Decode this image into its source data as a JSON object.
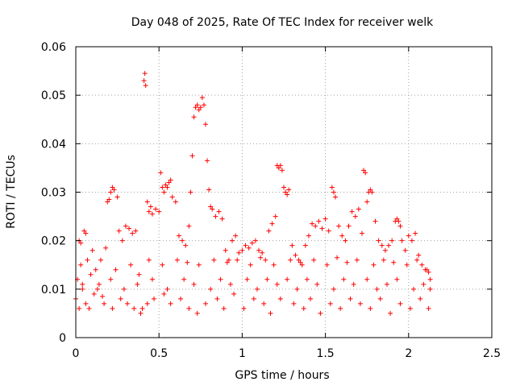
{
  "chart_data": {
    "type": "scatter",
    "title": "Day 048 of 2025, Rate Of TEC Index for receiver welk",
    "xlabel": "GPS time / hours",
    "ylabel": "ROTI / TECUs",
    "xlim": [
      0,
      2.5
    ],
    "ylim": [
      0,
      0.06
    ],
    "xticks": [
      0,
      0.5,
      1,
      1.5,
      2,
      2.5
    ],
    "xtick_labels": [
      "0",
      "0.5",
      "1",
      "1.5",
      "2",
      "2.5"
    ],
    "yticks": [
      0,
      0.01,
      0.02,
      0.03,
      0.04,
      0.05,
      0.06
    ],
    "ytick_labels": [
      "0",
      "0.01",
      "0.02",
      "0.03",
      "0.04",
      "0.05",
      "0.06"
    ],
    "grid": true,
    "marker": "plus",
    "color": "#ff0000",
    "series": [
      {
        "name": "",
        "points": [
          [
            0.0,
            0.008
          ],
          [
            0.01,
            0.012
          ],
          [
            0.02,
            0.02
          ],
          [
            0.03,
            0.0195
          ],
          [
            0.04,
            0.01
          ],
          [
            0.05,
            0.022
          ],
          [
            0.06,
            0.0215
          ],
          [
            0.07,
            0.016
          ],
          [
            0.08,
            0.006
          ],
          [
            0.1,
            0.018
          ],
          [
            0.12,
            0.014
          ],
          [
            0.14,
            0.011
          ],
          [
            0.16,
            0.0085
          ],
          [
            0.18,
            0.0185
          ],
          [
            0.19,
            0.028
          ],
          [
            0.2,
            0.0285
          ],
          [
            0.21,
            0.03
          ],
          [
            0.22,
            0.031
          ],
          [
            0.23,
            0.0305
          ],
          [
            0.25,
            0.029
          ],
          [
            0.26,
            0.022
          ],
          [
            0.28,
            0.02
          ],
          [
            0.3,
            0.023
          ],
          [
            0.32,
            0.0225
          ],
          [
            0.34,
            0.0215
          ],
          [
            0.36,
            0.022
          ],
          [
            0.38,
            0.013
          ],
          [
            0.4,
            0.006
          ],
          [
            0.41,
            0.053
          ],
          [
            0.415,
            0.0545
          ],
          [
            0.42,
            0.052
          ],
          [
            0.43,
            0.028
          ],
          [
            0.44,
            0.026
          ],
          [
            0.45,
            0.027
          ],
          [
            0.46,
            0.0255
          ],
          [
            0.48,
            0.0265
          ],
          [
            0.5,
            0.026
          ],
          [
            0.51,
            0.034
          ],
          [
            0.52,
            0.031
          ],
          [
            0.53,
            0.03
          ],
          [
            0.54,
            0.0315
          ],
          [
            0.55,
            0.031
          ],
          [
            0.56,
            0.032
          ],
          [
            0.57,
            0.0325
          ],
          [
            0.58,
            0.029
          ],
          [
            0.6,
            0.028
          ],
          [
            0.62,
            0.021
          ],
          [
            0.64,
            0.02
          ],
          [
            0.66,
            0.019
          ],
          [
            0.68,
            0.023
          ],
          [
            0.69,
            0.03
          ],
          [
            0.7,
            0.0375
          ],
          [
            0.71,
            0.0455
          ],
          [
            0.72,
            0.0475
          ],
          [
            0.73,
            0.048
          ],
          [
            0.74,
            0.047
          ],
          [
            0.75,
            0.0475
          ],
          [
            0.76,
            0.0495
          ],
          [
            0.77,
            0.048
          ],
          [
            0.78,
            0.044
          ],
          [
            0.79,
            0.0365
          ],
          [
            0.8,
            0.0305
          ],
          [
            0.81,
            0.027
          ],
          [
            0.82,
            0.0265
          ],
          [
            0.84,
            0.025
          ],
          [
            0.86,
            0.026
          ],
          [
            0.88,
            0.0245
          ],
          [
            0.9,
            0.018
          ],
          [
            0.92,
            0.016
          ],
          [
            0.94,
            0.02
          ],
          [
            0.96,
            0.021
          ],
          [
            0.98,
            0.0175
          ],
          [
            1.0,
            0.018
          ],
          [
            1.02,
            0.019
          ],
          [
            1.04,
            0.0185
          ],
          [
            1.06,
            0.0195
          ],
          [
            1.08,
            0.02
          ],
          [
            1.1,
            0.018
          ],
          [
            1.12,
            0.0175
          ],
          [
            1.14,
            0.016
          ],
          [
            1.16,
            0.022
          ],
          [
            1.18,
            0.0235
          ],
          [
            1.2,
            0.025
          ],
          [
            1.21,
            0.0355
          ],
          [
            1.22,
            0.035
          ],
          [
            1.23,
            0.0355
          ],
          [
            1.24,
            0.0345
          ],
          [
            1.25,
            0.031
          ],
          [
            1.26,
            0.03
          ],
          [
            1.27,
            0.0295
          ],
          [
            1.28,
            0.0305
          ],
          [
            1.3,
            0.019
          ],
          [
            1.32,
            0.017
          ],
          [
            1.34,
            0.016
          ],
          [
            1.36,
            0.015
          ],
          [
            1.38,
            0.019
          ],
          [
            1.4,
            0.021
          ],
          [
            1.42,
            0.0235
          ],
          [
            1.44,
            0.023
          ],
          [
            1.46,
            0.024
          ],
          [
            1.48,
            0.0225
          ],
          [
            1.5,
            0.0245
          ],
          [
            1.52,
            0.022
          ],
          [
            1.54,
            0.031
          ],
          [
            1.55,
            0.03
          ],
          [
            1.56,
            0.029
          ],
          [
            1.58,
            0.023
          ],
          [
            1.6,
            0.021
          ],
          [
            1.62,
            0.02
          ],
          [
            1.64,
            0.023
          ],
          [
            1.66,
            0.026
          ],
          [
            1.68,
            0.025
          ],
          [
            1.7,
            0.0265
          ],
          [
            1.72,
            0.0215
          ],
          [
            1.73,
            0.0345
          ],
          [
            1.74,
            0.034
          ],
          [
            1.75,
            0.028
          ],
          [
            1.76,
            0.03
          ],
          [
            1.77,
            0.0305
          ],
          [
            1.78,
            0.03
          ],
          [
            1.8,
            0.024
          ],
          [
            1.82,
            0.02
          ],
          [
            1.84,
            0.019
          ],
          [
            1.86,
            0.018
          ],
          [
            1.88,
            0.019
          ],
          [
            1.9,
            0.02
          ],
          [
            1.92,
            0.024
          ],
          [
            1.93,
            0.0245
          ],
          [
            1.94,
            0.024
          ],
          [
            1.95,
            0.023
          ],
          [
            1.96,
            0.02
          ],
          [
            1.98,
            0.018
          ],
          [
            2.0,
            0.021
          ],
          [
            2.02,
            0.02
          ],
          [
            2.04,
            0.0215
          ],
          [
            2.06,
            0.017
          ],
          [
            2.08,
            0.015
          ],
          [
            2.1,
            0.014
          ],
          [
            2.12,
            0.0135
          ],
          [
            2.13,
            0.01
          ],
          [
            0.03,
            0.015
          ],
          [
            0.09,
            0.013
          ],
          [
            0.15,
            0.016
          ],
          [
            0.24,
            0.014
          ],
          [
            0.33,
            0.015
          ],
          [
            0.44,
            0.016
          ],
          [
            0.52,
            0.015
          ],
          [
            0.61,
            0.016
          ],
          [
            0.67,
            0.0155
          ],
          [
            0.74,
            0.015
          ],
          [
            0.83,
            0.016
          ],
          [
            0.91,
            0.0155
          ],
          [
            0.97,
            0.016
          ],
          [
            1.05,
            0.015
          ],
          [
            1.11,
            0.0165
          ],
          [
            1.19,
            0.015
          ],
          [
            1.29,
            0.016
          ],
          [
            1.35,
            0.0155
          ],
          [
            1.43,
            0.016
          ],
          [
            1.51,
            0.015
          ],
          [
            1.57,
            0.0165
          ],
          [
            1.63,
            0.0155
          ],
          [
            1.69,
            0.016
          ],
          [
            1.79,
            0.015
          ],
          [
            1.85,
            0.016
          ],
          [
            1.91,
            0.0155
          ],
          [
            1.99,
            0.015
          ],
          [
            2.05,
            0.016
          ],
          [
            2.11,
            0.014
          ],
          [
            0.02,
            0.006
          ],
          [
            0.06,
            0.007
          ],
          [
            0.11,
            0.009
          ],
          [
            0.17,
            0.007
          ],
          [
            0.22,
            0.006
          ],
          [
            0.27,
            0.008
          ],
          [
            0.31,
            0.007
          ],
          [
            0.35,
            0.006
          ],
          [
            0.39,
            0.005
          ],
          [
            0.43,
            0.007
          ],
          [
            0.47,
            0.008
          ],
          [
            0.53,
            0.009
          ],
          [
            0.57,
            0.007
          ],
          [
            0.63,
            0.008
          ],
          [
            0.68,
            0.006
          ],
          [
            0.73,
            0.005
          ],
          [
            0.78,
            0.007
          ],
          [
            0.85,
            0.008
          ],
          [
            0.89,
            0.006
          ],
          [
            0.95,
            0.009
          ],
          [
            1.01,
            0.006
          ],
          [
            1.07,
            0.008
          ],
          [
            1.13,
            0.007
          ],
          [
            1.17,
            0.005
          ],
          [
            1.23,
            0.008
          ],
          [
            1.31,
            0.007
          ],
          [
            1.37,
            0.006
          ],
          [
            1.41,
            0.008
          ],
          [
            1.47,
            0.005
          ],
          [
            1.53,
            0.007
          ],
          [
            1.59,
            0.006
          ],
          [
            1.65,
            0.008
          ],
          [
            1.71,
            0.007
          ],
          [
            1.77,
            0.006
          ],
          [
            1.83,
            0.008
          ],
          [
            1.89,
            0.005
          ],
          [
            1.95,
            0.007
          ],
          [
            2.01,
            0.006
          ],
          [
            2.07,
            0.008
          ],
          [
            2.12,
            0.006
          ],
          [
            0.04,
            0.011
          ],
          [
            0.13,
            0.01
          ],
          [
            0.21,
            0.012
          ],
          [
            0.29,
            0.01
          ],
          [
            0.37,
            0.011
          ],
          [
            0.46,
            0.012
          ],
          [
            0.55,
            0.01
          ],
          [
            0.65,
            0.012
          ],
          [
            0.71,
            0.011
          ],
          [
            0.81,
            0.01
          ],
          [
            0.87,
            0.012
          ],
          [
            0.93,
            0.011
          ],
          [
            1.03,
            0.012
          ],
          [
            1.09,
            0.01
          ],
          [
            1.15,
            0.012
          ],
          [
            1.21,
            0.011
          ],
          [
            1.27,
            0.012
          ],
          [
            1.33,
            0.01
          ],
          [
            1.39,
            0.012
          ],
          [
            1.45,
            0.011
          ],
          [
            1.55,
            0.01
          ],
          [
            1.61,
            0.012
          ],
          [
            1.67,
            0.011
          ],
          [
            1.75,
            0.012
          ],
          [
            1.81,
            0.01
          ],
          [
            1.87,
            0.011
          ],
          [
            1.93,
            0.012
          ],
          [
            2.03,
            0.01
          ],
          [
            2.09,
            0.011
          ],
          [
            2.13,
            0.012
          ]
        ]
      }
    ]
  }
}
